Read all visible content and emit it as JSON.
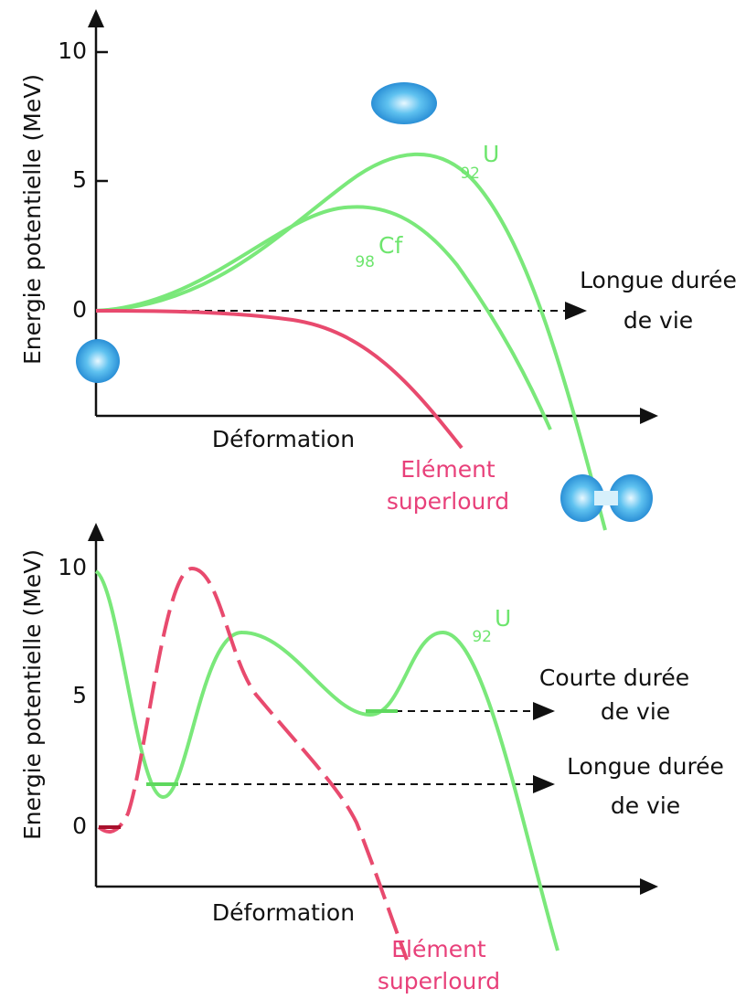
{
  "panels": [
    {
      "y_axis_label": "Energie potentielle (MeV)",
      "y_ticks": [
        "10",
        "5",
        "0"
      ],
      "x_axis_label": "Déformation",
      "curve_labels": [
        {
          "sub": "92",
          "symbol": "U"
        },
        {
          "sub": "98",
          "symbol": "Cf"
        }
      ],
      "element_label": [
        "Elément",
        "superlourd"
      ],
      "annotations": [
        [
          "Longue durée",
          "de vie"
        ]
      ]
    },
    {
      "y_axis_label": "Energie potentielle (MeV)",
      "y_ticks": [
        "10",
        "5",
        "0"
      ],
      "x_axis_label": "Déformation",
      "curve_labels": [
        {
          "sub": "92",
          "symbol": "U"
        }
      ],
      "element_label": [
        "Elément",
        "superlourd"
      ],
      "annotations": [
        [
          "Courte durée",
          "de vie"
        ],
        [
          "Longue durée",
          "de vie"
        ]
      ]
    }
  ]
}
